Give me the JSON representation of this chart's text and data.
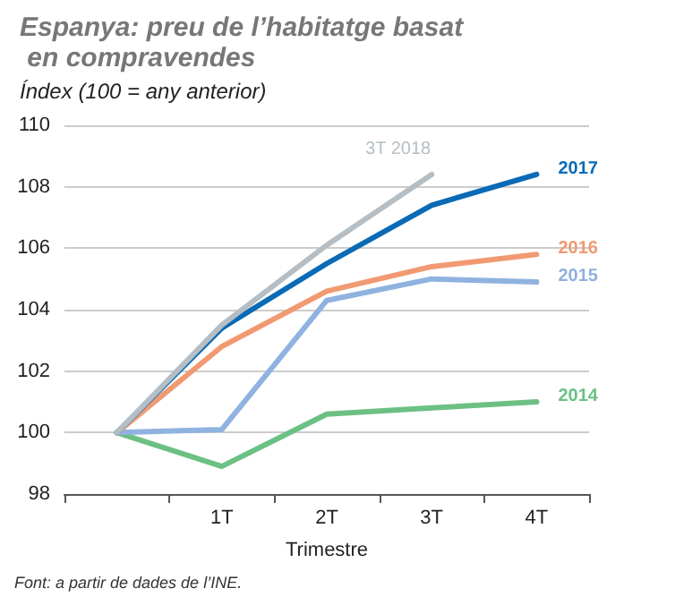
{
  "chart_data": {
    "type": "line",
    "title": "Espanya: preu de l’habitatge basat en compravendes",
    "subtitle": "Índex (100 = any anterior)",
    "xlabel": "Trimestre",
    "categories": [
      null,
      "1T",
      "2T",
      "3T",
      "4T"
    ],
    "series": [
      {
        "name": "3T 2018",
        "color": "#b5bec4",
        "values": [
          100,
          103.5,
          106.1,
          108.4,
          null
        ]
      },
      {
        "name": "2017",
        "color": "#0a6ab5",
        "values": [
          100,
          103.4,
          105.5,
          107.4,
          108.4
        ]
      },
      {
        "name": "2016",
        "color": "#f19a72",
        "values": [
          100,
          102.8,
          104.6,
          105.4,
          105.8
        ]
      },
      {
        "name": "2015",
        "color": "#8fb2e0",
        "values": [
          100,
          100.1,
          104.3,
          105.0,
          104.9
        ]
      },
      {
        "name": "2014",
        "color": "#6cc083",
        "values": [
          100,
          98.9,
          100.6,
          100.8,
          101.0
        ]
      }
    ],
    "ylim": [
      98,
      110
    ],
    "yticks": [
      98,
      100,
      102,
      104,
      106,
      108,
      110
    ],
    "grid": "y",
    "legend": false,
    "marker": "none",
    "line_style": "solid",
    "annotations": [
      "Font: a partir de dades de l’INE."
    ]
  }
}
